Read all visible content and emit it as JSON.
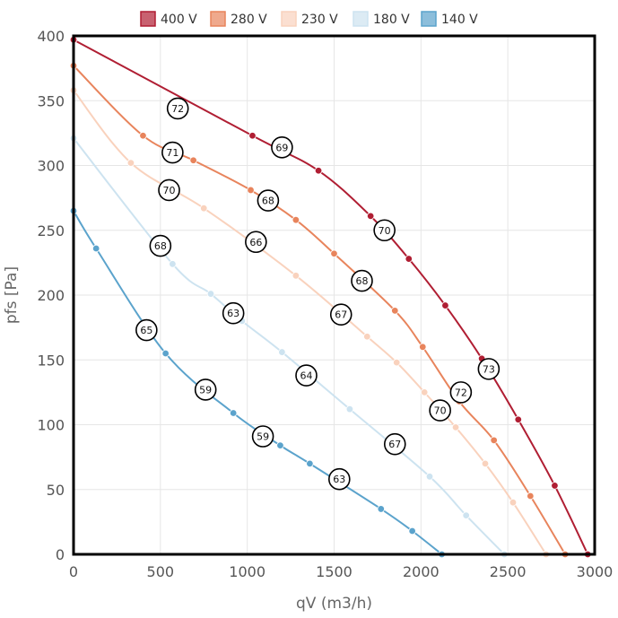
{
  "chart_data": {
    "type": "line",
    "xlabel": "qV (m3/h)",
    "ylabel": "pfs [Pa]",
    "xlim": [
      0,
      3000
    ],
    "ylim": [
      0,
      400
    ],
    "x_ticks": [
      0,
      500,
      1000,
      1500,
      2000,
      2500,
      3000
    ],
    "y_ticks": [
      0,
      50,
      100,
      150,
      200,
      250,
      300,
      350,
      400
    ],
    "grid": true,
    "legend_position": "top",
    "series": [
      {
        "name": "400 V",
        "color": "#b01e33",
        "points": [
          [
            0,
            397
          ],
          [
            1030,
            323
          ],
          [
            1410,
            296
          ],
          [
            1710,
            261
          ],
          [
            1930,
            228
          ],
          [
            2140,
            192
          ],
          [
            2350,
            151
          ],
          [
            2560,
            104
          ],
          [
            2770,
            53
          ],
          [
            2960,
            0
          ]
        ]
      },
      {
        "name": "280 V",
        "color": "#e8845c",
        "points": [
          [
            0,
            377
          ],
          [
            400,
            323
          ],
          [
            690,
            304
          ],
          [
            1020,
            281
          ],
          [
            1280,
            258
          ],
          [
            1500,
            232
          ],
          [
            1850,
            188
          ],
          [
            2010,
            160
          ],
          [
            2220,
            118
          ],
          [
            2420,
            88
          ],
          [
            2630,
            45
          ],
          [
            2830,
            0
          ]
        ]
      },
      {
        "name": "230 V",
        "color": "#f9d2bd",
        "points": [
          [
            0,
            358
          ],
          [
            330,
            302
          ],
          [
            750,
            267
          ],
          [
            1280,
            215
          ],
          [
            1690,
            168
          ],
          [
            1860,
            148
          ],
          [
            2020,
            125
          ],
          [
            2200,
            98
          ],
          [
            2370,
            70
          ],
          [
            2530,
            40
          ],
          [
            2720,
            0
          ]
        ]
      },
      {
        "name": "180 V",
        "color": "#cde3f0",
        "points": [
          [
            0,
            321
          ],
          [
            570,
            224
          ],
          [
            790,
            201
          ],
          [
            970,
            180
          ],
          [
            1200,
            156
          ],
          [
            1590,
            112
          ],
          [
            2050,
            60
          ],
          [
            2260,
            30
          ],
          [
            2480,
            0
          ]
        ]
      },
      {
        "name": "140 V",
        "color": "#5ba3cc",
        "points": [
          [
            0,
            265
          ],
          [
            130,
            236
          ],
          [
            530,
            155
          ],
          [
            920,
            109
          ],
          [
            1190,
            84
          ],
          [
            1360,
            70
          ],
          [
            1770,
            35
          ],
          [
            1950,
            18
          ],
          [
            2120,
            0
          ]
        ]
      }
    ],
    "annotations": [
      {
        "label": "72",
        "x": 600,
        "y": 344
      },
      {
        "label": "69",
        "x": 1200,
        "y": 314
      },
      {
        "label": "70",
        "x": 1790,
        "y": 250
      },
      {
        "label": "73",
        "x": 2390,
        "y": 143
      },
      {
        "label": "71",
        "x": 570,
        "y": 310
      },
      {
        "label": "68",
        "x": 1120,
        "y": 273
      },
      {
        "label": "68",
        "x": 1660,
        "y": 211
      },
      {
        "label": "72",
        "x": 2230,
        "y": 125
      },
      {
        "label": "70",
        "x": 550,
        "y": 281
      },
      {
        "label": "66",
        "x": 1050,
        "y": 241
      },
      {
        "label": "67",
        "x": 1540,
        "y": 185
      },
      {
        "label": "70",
        "x": 2110,
        "y": 111
      },
      {
        "label": "68",
        "x": 500,
        "y": 238
      },
      {
        "label": "63",
        "x": 920,
        "y": 186
      },
      {
        "label": "64",
        "x": 1340,
        "y": 138
      },
      {
        "label": "67",
        "x": 1850,
        "y": 85
      },
      {
        "label": "65",
        "x": 420,
        "y": 173
      },
      {
        "label": "59",
        "x": 760,
        "y": 127
      },
      {
        "label": "59",
        "x": 1090,
        "y": 91
      },
      {
        "label": "63",
        "x": 1530,
        "y": 58
      }
    ]
  }
}
